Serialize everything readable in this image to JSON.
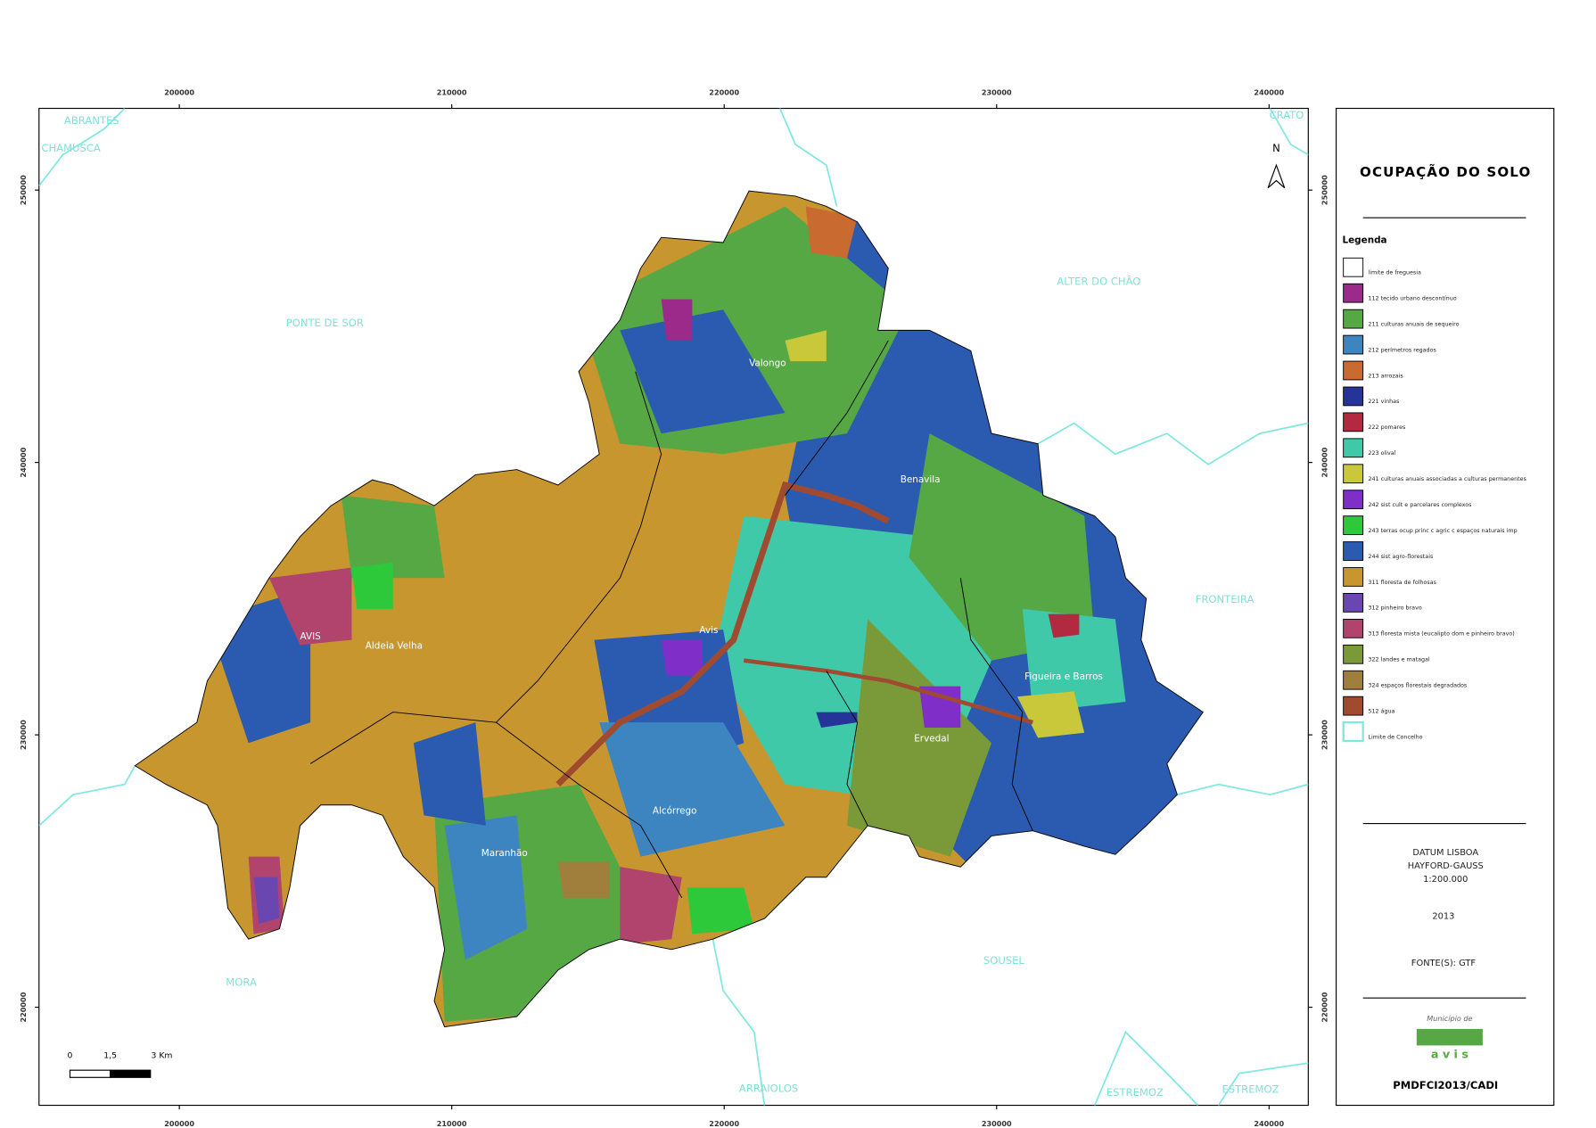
{
  "header": {
    "title": "OCUPAÇÃO DO SOLO"
  },
  "map": {
    "xlim": [
      194850,
      241440
    ],
    "ylim": [
      216400,
      253000
    ],
    "xticks": [
      200000,
      210000,
      220000,
      230000,
      240000
    ],
    "yticks": [
      220000,
      230000,
      240000,
      250000
    ],
    "north": "N",
    "places": [
      "ABRANTES",
      "CHAMUSCA",
      "PONTE DE SOR",
      "ALTER DO CHÃO",
      "FRONTEIRA",
      "SOUSEL",
      "MORA",
      "ARRAIOLOS",
      "ESTREMOZ",
      "ESTREMOZ",
      "CRATO",
      "Valongo",
      "Benavila",
      "Avis",
      "AVIS",
      "Aldeia Velha",
      "Figueira e Barros",
      "Ervedal",
      "Alcórrego",
      "Maranhão"
    ],
    "scale": [
      "0",
      "1,5",
      "3 Km"
    ]
  },
  "legend": {
    "title": "Legenda",
    "items": [
      {
        "label": "limite de freguesia",
        "color": "#ffffff"
      },
      {
        "label": "112 tecido urbano descontínuo",
        "color": "#9c2a8a"
      },
      {
        "label": "211 culturas anuais de sequeiro",
        "color": "#55a844"
      },
      {
        "label": "212 perímetros regados",
        "color": "#3d85c0"
      },
      {
        "label": "213 arrozais",
        "color": "#c96a30"
      },
      {
        "label": "221 vinhas",
        "color": "#26349a"
      },
      {
        "label": "222 pomares",
        "color": "#b3293f"
      },
      {
        "label": "223 olival",
        "color": "#3fc9a9"
      },
      {
        "label": "241 culturas anuais associadas a culturas permanentes",
        "color": "#c8c83a"
      },
      {
        "label": "242 sist cult e parcelares complexos",
        "color": "#7f2fc7"
      },
      {
        "label": "243 terras ocup princ c agric c espaços naturais imp",
        "color": "#2dc93a"
      },
      {
        "label": "244 sist agro-florestais",
        "color": "#2a5bb0"
      },
      {
        "label": "311 floresta de folhosas",
        "color": "#c8962e"
      },
      {
        "label": "312 pinheiro bravo",
        "color": "#6a46b0"
      },
      {
        "label": "313 floresta mista (eucalipto dom e pinheiro bravo)",
        "color": "#b0446d"
      },
      {
        "label": "322 landes e matagal",
        "color": "#7a9a3a"
      },
      {
        "label": "324 espaços florestais degradados",
        "color": "#a07f3c"
      },
      {
        "label": "512 água",
        "color": "#a04a30"
      },
      {
        "label": "Limite de Concelho",
        "color": "#7fe8e0"
      }
    ]
  },
  "info": {
    "datum": "DATUM LISBOA",
    "projection": "HAYFORD-GAUSS",
    "scale": "1:200.000",
    "year": "2013",
    "source": "FONTE(S): GTF"
  },
  "footer": {
    "logo_top": "Município de",
    "logo_word": "a v i s",
    "code": "PMDFCI2013/CADI"
  }
}
